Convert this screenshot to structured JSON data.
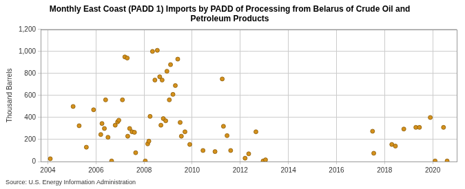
{
  "chart_data": {
    "type": "scatter",
    "title": [
      "Monthly East Coast (PADD 1) Imports by PADD of Processing from Belarus of Crude Oil and",
      "Petroleum Products"
    ],
    "y_label": "Thousand Barrels",
    "source": "Source: U.S. Energy Information Administration",
    "x": [
      2004.1,
      2005.05,
      2005.3,
      2005.6,
      2005.9,
      2006.2,
      2006.25,
      2006.35,
      2006.4,
      2006.5,
      2006.65,
      2006.8,
      2006.9,
      2006.95,
      2007.1,
      2007.2,
      2007.3,
      2007.32,
      2007.4,
      2007.5,
      2007.6,
      2007.65,
      2008.05,
      2008.15,
      2008.2,
      2008.25,
      2008.35,
      2008.45,
      2008.55,
      2008.65,
      2008.7,
      2008.75,
      2008.8,
      2008.9,
      2008.95,
      2009.05,
      2009.1,
      2009.2,
      2009.3,
      2009.4,
      2009.5,
      2009.55,
      2009.7,
      2009.9,
      2010.45,
      2010.95,
      2011.25,
      2011.3,
      2011.45,
      2011.6,
      2012.2,
      2012.35,
      2012.65,
      2012.95,
      2013.05,
      2017.5,
      2017.55,
      2018.3,
      2018.45,
      2018.8,
      2019.3,
      2019.45,
      2019.9,
      2020.1,
      2020.45,
      2020.6
    ],
    "values": [
      25,
      500,
      325,
      130,
      470,
      245,
      345,
      300,
      560,
      220,
      5,
      330,
      360,
      375,
      560,
      950,
      940,
      230,
      300,
      270,
      265,
      80,
      5,
      160,
      185,
      410,
      1000,
      740,
      1010,
      770,
      330,
      740,
      390,
      370,
      820,
      560,
      880,
      610,
      690,
      930,
      355,
      230,
      270,
      155,
      100,
      90,
      750,
      320,
      235,
      100,
      30,
      70,
      270,
      5,
      15,
      275,
      75,
      155,
      140,
      295,
      310,
      310,
      400,
      5,
      310,
      5
    ],
    "color": "#d4911c",
    "marker": "circle",
    "xlim": [
      2003.7,
      2021.0
    ],
    "xticks": [
      2004,
      2006,
      2008,
      2010,
      2012,
      2014,
      2016,
      2018,
      2020
    ],
    "ylim": [
      0,
      1200
    ],
    "yticks": [
      0,
      200,
      400,
      600,
      800,
      {
        "value": 1000,
        "label": "1,000"
      },
      {
        "value": 1200,
        "label": "1,200"
      }
    ],
    "grid": true
  }
}
